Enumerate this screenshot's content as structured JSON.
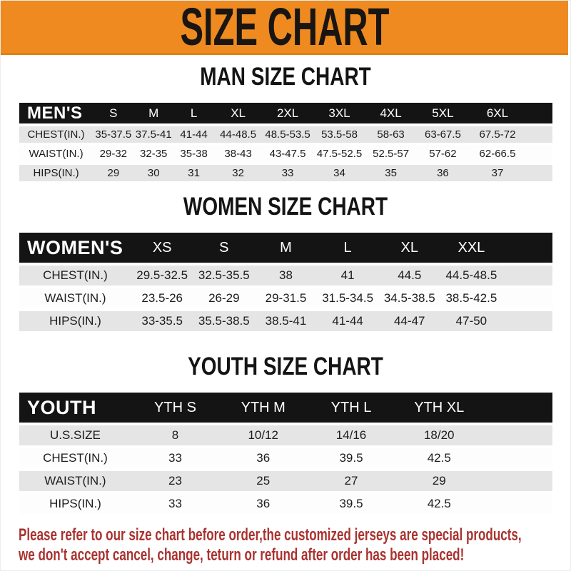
{
  "banner": {
    "title": "SIZE CHART"
  },
  "colors": {
    "banner_bg": "#ee8a1f",
    "header_bar": "#141414",
    "row_gray": "#e5e5e5",
    "notice_red": "#a93330"
  },
  "sections": [
    {
      "id": "men",
      "heading": "MAN SIZE CHART",
      "corner_label": "MEN'S",
      "columns": [
        "S",
        "M",
        "L",
        "XL",
        "2XL",
        "3XL",
        "4XL",
        "5XL",
        "6XL"
      ],
      "rows": [
        {
          "label": "CHEST(IN.)",
          "values": [
            "35-37.5",
            "37.5-41",
            "41-44",
            "44-48.5",
            "48.5-53.5",
            "53.5-58",
            "58-63",
            "63-67.5",
            "67.5-72"
          ]
        },
        {
          "label": "WAIST(IN.)",
          "values": [
            "29-32",
            "32-35",
            "35-38",
            "38-43",
            "43-47.5",
            "47.5-52.5",
            "52.5-57",
            "57-62",
            "62-66.5"
          ]
        },
        {
          "label": "HIPS(IN.)",
          "values": [
            "29",
            "30",
            "31",
            "32",
            "33",
            "34",
            "35",
            "36",
            "37"
          ]
        }
      ]
    },
    {
      "id": "women",
      "heading": "WOMEN SIZE CHART",
      "corner_label": "WOMEN'S",
      "columns": [
        "XS",
        "S",
        "M",
        "L",
        "XL",
        "XXL"
      ],
      "rows": [
        {
          "label": "CHEST(IN.)",
          "values": [
            "29.5-32.5",
            "32.5-35.5",
            "38",
            "41",
            "44.5",
            "44.5-48.5"
          ]
        },
        {
          "label": "WAIST(IN.)",
          "values": [
            "23.5-26",
            "26-29",
            "29-31.5",
            "31.5-34.5",
            "34.5-38.5",
            "38.5-42.5"
          ]
        },
        {
          "label": "HIPS(IN.)",
          "values": [
            "33-35.5",
            "35.5-38.5",
            "38.5-41",
            "41-44",
            "44-47",
            "47-50"
          ]
        }
      ]
    },
    {
      "id": "youth",
      "heading": "YOUTH SIZE CHART",
      "corner_label": "YOUTH",
      "columns": [
        "YTH S",
        "YTH M",
        "YTH L",
        "YTH XL"
      ],
      "rows": [
        {
          "label": "U.S.SIZE",
          "values": [
            "8",
            "10/12",
            "14/16",
            "18/20"
          ]
        },
        {
          "label": "CHEST(IN.)",
          "values": [
            "33",
            "36",
            "39.5",
            "42.5"
          ]
        },
        {
          "label": "WAIST(IN.)",
          "values": [
            "23",
            "25",
            "27",
            "29"
          ]
        },
        {
          "label": "HIPS(IN.)",
          "values": [
            "33",
            "36",
            "39.5",
            "42.5"
          ]
        }
      ]
    }
  ],
  "footer": {
    "line1": "Please refer to our size chart before order,the customized jerseys are special products,",
    "line2": "we don't accept cancel, change, teturn or refund after order has been placed!"
  }
}
